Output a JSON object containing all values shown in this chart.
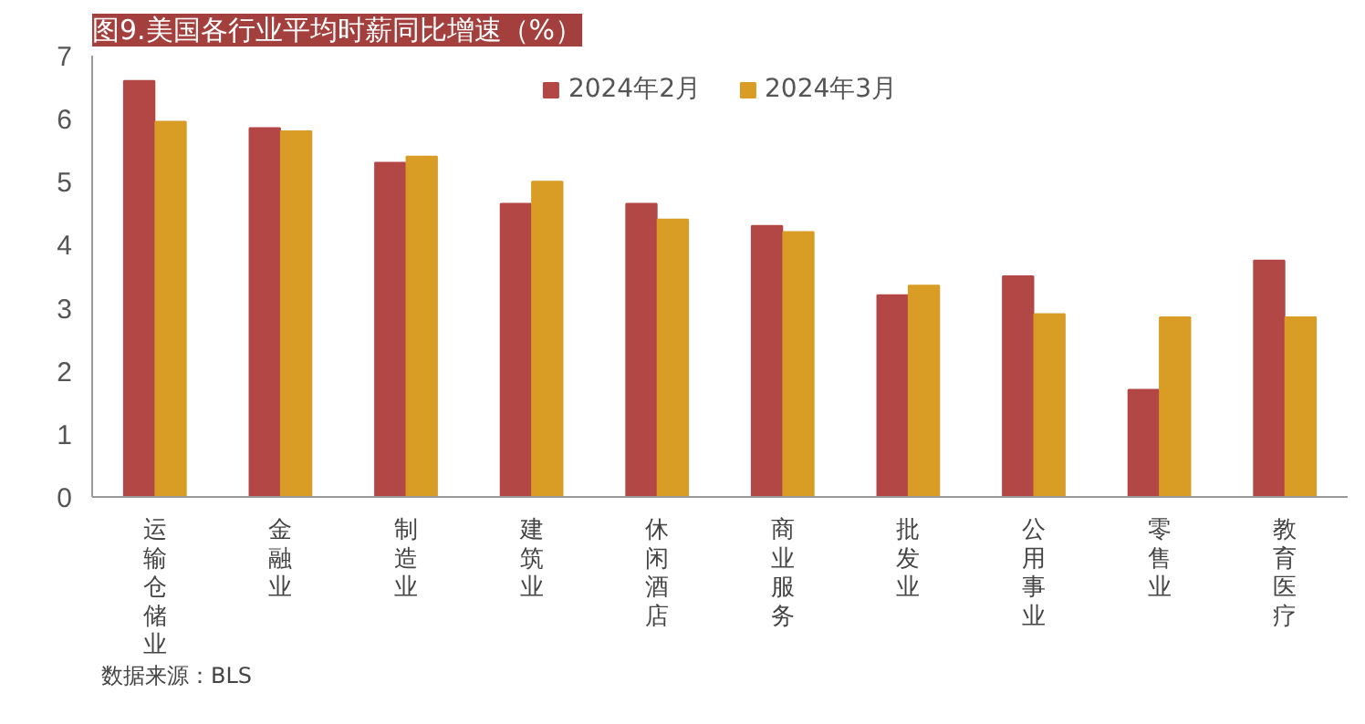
{
  "chart_data": {
    "type": "bar",
    "title": "图9.美国各行业平均时薪同比增速（%）",
    "categories": [
      "运输仓储业",
      "金融业",
      "制造业",
      "建筑业",
      "休闲酒店",
      "商业服务",
      "批发业",
      "公用事业",
      "零售业",
      "教育医疗"
    ],
    "series": [
      {
        "name": "2024年2月",
        "color": "#b34745",
        "values": [
          6.6,
          5.85,
          5.3,
          4.65,
          4.65,
          4.3,
          3.2,
          3.5,
          1.7,
          3.75
        ]
      },
      {
        "name": "2024年3月",
        "color": "#d99c24",
        "values": [
          5.95,
          5.8,
          5.4,
          5.0,
          4.4,
          4.2,
          3.35,
          2.9,
          2.85,
          2.85
        ]
      }
    ],
    "ylim": [
      0,
      7
    ],
    "yticks": [
      0,
      1,
      2,
      3,
      4,
      5,
      6,
      7
    ],
    "grid": false,
    "legend": "top",
    "annotations": [
      "数据来源：BLS"
    ]
  }
}
